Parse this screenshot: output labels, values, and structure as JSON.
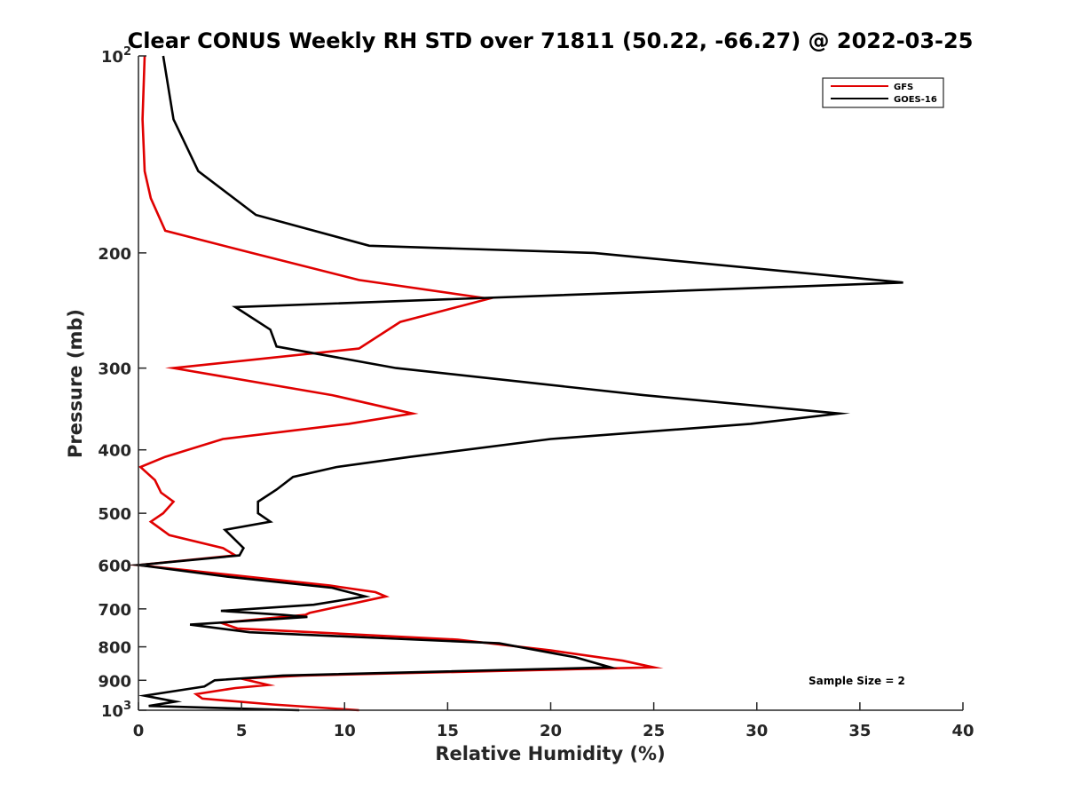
{
  "chart_data": {
    "type": "line",
    "title": "Clear CONUS Weekly RH STD over 71811 (50.22, -66.27) @ 2022-03-25",
    "xlabel": "Relative Humidity (%)",
    "ylabel": "Pressure (mb)",
    "xlim": [
      0,
      40
    ],
    "ylim": [
      100,
      1000
    ],
    "yscale": "log",
    "y_reversed": true,
    "grid": false,
    "x_ticks": [
      0,
      5,
      10,
      15,
      20,
      25,
      30,
      35,
      40
    ],
    "y_ticks": [
      {
        "value": 100,
        "label": "10",
        "sup": "2"
      },
      {
        "value": 200,
        "label": "200",
        "sup": ""
      },
      {
        "value": 300,
        "label": "300",
        "sup": ""
      },
      {
        "value": 400,
        "label": "400",
        "sup": ""
      },
      {
        "value": 500,
        "label": "500",
        "sup": ""
      },
      {
        "value": 600,
        "label": "600",
        "sup": ""
      },
      {
        "value": 700,
        "label": "700",
        "sup": ""
      },
      {
        "value": 800,
        "label": "800",
        "sup": ""
      },
      {
        "value": 900,
        "label": "900",
        "sup": ""
      },
      {
        "value": 1000,
        "label": "10",
        "sup": "3"
      }
    ],
    "legend_position": "top-right",
    "annotation": "Sample Size = 2",
    "series": [
      {
        "name": "GFS",
        "color": "#e00000",
        "points": [
          [
            0.3,
            100
          ],
          [
            0.2,
            125
          ],
          [
            0.3,
            150
          ],
          [
            0.6,
            165
          ],
          [
            1.3,
            185
          ],
          [
            5.5,
            200
          ],
          [
            10.7,
            220
          ],
          [
            17.0,
            235
          ],
          [
            12.7,
            255
          ],
          [
            10.7,
            280
          ],
          [
            1.7,
            300
          ],
          [
            9.4,
            330
          ],
          [
            13.3,
            352
          ],
          [
            10.2,
            365
          ],
          [
            4.1,
            385
          ],
          [
            1.3,
            410
          ],
          [
            0.1,
            425
          ],
          [
            0.8,
            445
          ],
          [
            1.1,
            465
          ],
          [
            1.7,
            480
          ],
          [
            1.2,
            500
          ],
          [
            0.6,
            515
          ],
          [
            1.5,
            540
          ],
          [
            4.1,
            565
          ],
          [
            4.7,
            580
          ],
          [
            0.0,
            600
          ],
          [
            9.3,
            645
          ],
          [
            11.5,
            660
          ],
          [
            12.0,
            670
          ],
          [
            8.3,
            710
          ],
          [
            8.1,
            715
          ],
          [
            4.0,
            735
          ],
          [
            4.8,
            750
          ],
          [
            15.5,
            780
          ],
          [
            20.0,
            810
          ],
          [
            23.5,
            840
          ],
          [
            25.0,
            860
          ],
          [
            8.0,
            885
          ],
          [
            5.0,
            895
          ],
          [
            6.3,
            915
          ],
          [
            4.7,
            925
          ],
          [
            2.8,
            945
          ],
          [
            3.1,
            960
          ],
          [
            6.5,
            980
          ],
          [
            10.7,
            1000
          ]
        ]
      },
      {
        "name": "GOES-16",
        "color": "#000000",
        "points": [
          [
            1.2,
            100
          ],
          [
            1.7,
            125
          ],
          [
            2.9,
            150
          ],
          [
            5.7,
            175
          ],
          [
            11.2,
            195
          ],
          [
            22.1,
            200
          ],
          [
            37.1,
            222
          ],
          [
            4.7,
            242
          ],
          [
            6.4,
            262
          ],
          [
            6.7,
            278
          ],
          [
            12.5,
            300
          ],
          [
            24.5,
            330
          ],
          [
            34.0,
            352
          ],
          [
            29.7,
            365
          ],
          [
            20.0,
            385
          ],
          [
            13.2,
            410
          ],
          [
            9.6,
            425
          ],
          [
            7.5,
            440
          ],
          [
            6.7,
            460
          ],
          [
            5.8,
            480
          ],
          [
            5.8,
            500
          ],
          [
            6.4,
            515
          ],
          [
            4.2,
            530
          ],
          [
            5.1,
            565
          ],
          [
            4.9,
            580
          ],
          [
            0.0,
            600
          ],
          [
            4.3,
            625
          ],
          [
            9.4,
            650
          ],
          [
            11.0,
            670
          ],
          [
            8.5,
            690
          ],
          [
            4.0,
            705
          ],
          [
            7.0,
            715
          ],
          [
            8.2,
            720
          ],
          [
            2.5,
            740
          ],
          [
            5.4,
            760
          ],
          [
            17.5,
            790
          ],
          [
            21.2,
            830
          ],
          [
            22.9,
            860
          ],
          [
            7.0,
            885
          ],
          [
            3.7,
            900
          ],
          [
            3.2,
            920
          ],
          [
            0.3,
            950
          ],
          [
            1.8,
            970
          ],
          [
            0.5,
            985
          ],
          [
            7.8,
            1000
          ]
        ]
      }
    ]
  }
}
